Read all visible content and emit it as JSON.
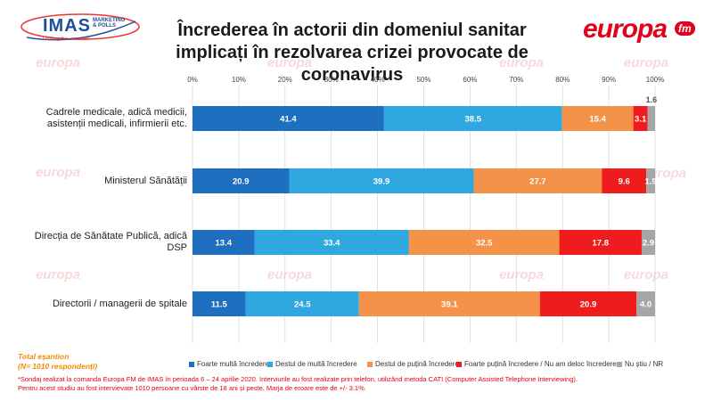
{
  "branding": {
    "imas_name": "IMAS",
    "imas_subtitle_1": "MARKETING",
    "imas_subtitle_2": "& POLLS",
    "imas_tagline": "Limiting the uncertain",
    "europa_word": "europa",
    "europa_fm": "fm",
    "watermark_text": "europa"
  },
  "chart_data": {
    "type": "bar",
    "orientation": "horizontal",
    "stacked": true,
    "title": "Încrederea în actorii din domeniul sanitar implicați în rezolvarea crizei provocate de coronavirus",
    "categories": [
      [
        "Cadrele medicale, adică medicii,",
        "asistenții medicali, infirmierii etc."
      ],
      [
        "Ministerul Sănătății"
      ],
      [
        "Direcția de Sănătate Publică, adică",
        "DSP"
      ],
      [
        "Directorii / managerii de spitale"
      ]
    ],
    "series": [
      {
        "name": "Foarte multă încredere",
        "color": "#1e6fc0",
        "values": [
          41.4,
          20.9,
          13.4,
          11.5
        ]
      },
      {
        "name": "Destul de multă încredere",
        "color": "#2fa8e0",
        "values": [
          38.5,
          39.9,
          33.4,
          24.5
        ]
      },
      {
        "name": "Destul de puțină încredere",
        "color": "#f4924a",
        "values": [
          15.4,
          27.7,
          32.5,
          39.1
        ]
      },
      {
        "name": "Foarte puțină încredere / Nu am deloc încredere",
        "color": "#ee1c1c",
        "values": [
          3.1,
          9.6,
          17.8,
          20.9
        ]
      },
      {
        "name": "Nu știu / NR",
        "color": "#a6a6a6",
        "values": [
          1.6,
          1.9,
          2.9,
          4.0
        ]
      }
    ],
    "value_labels": [
      [
        "41.4",
        "38.5",
        "15.4",
        "3.1",
        "1.6"
      ],
      [
        "20.9",
        "39.9",
        "27.7",
        "9.6",
        "1.9"
      ],
      [
        "13.4",
        "33.4",
        "32.5",
        "17.8",
        "2.9"
      ],
      [
        "11.5",
        "24.5",
        "39.1",
        "20.9",
        "4.0"
      ]
    ],
    "x_ticks": [
      "0%",
      "10%",
      "20%",
      "30%",
      "40%",
      "50%",
      "60%",
      "70%",
      "80%",
      "90%",
      "100%"
    ],
    "xlim": [
      0,
      100
    ],
    "grid": true,
    "legend_position": "bottom"
  },
  "notes": {
    "total_line_1": "Total eșantion",
    "total_line_2": "(N= 1010 respondenți)",
    "footnote_line_1": "*Sondaj realizat la comanda Europa FM de IMAS în perioada  6 – 24 aprilie 2020. Interviurile au fost realizate prin telefon, utilizând metoda CATI (Computer Assisted Telephone Interviewing).",
    "footnote_line_2": "Pentru acest studiu au fost intervievate 1010 persoane cu vârste de 18 ani și peste. Marja de eroare este de +/- 3.1%."
  }
}
